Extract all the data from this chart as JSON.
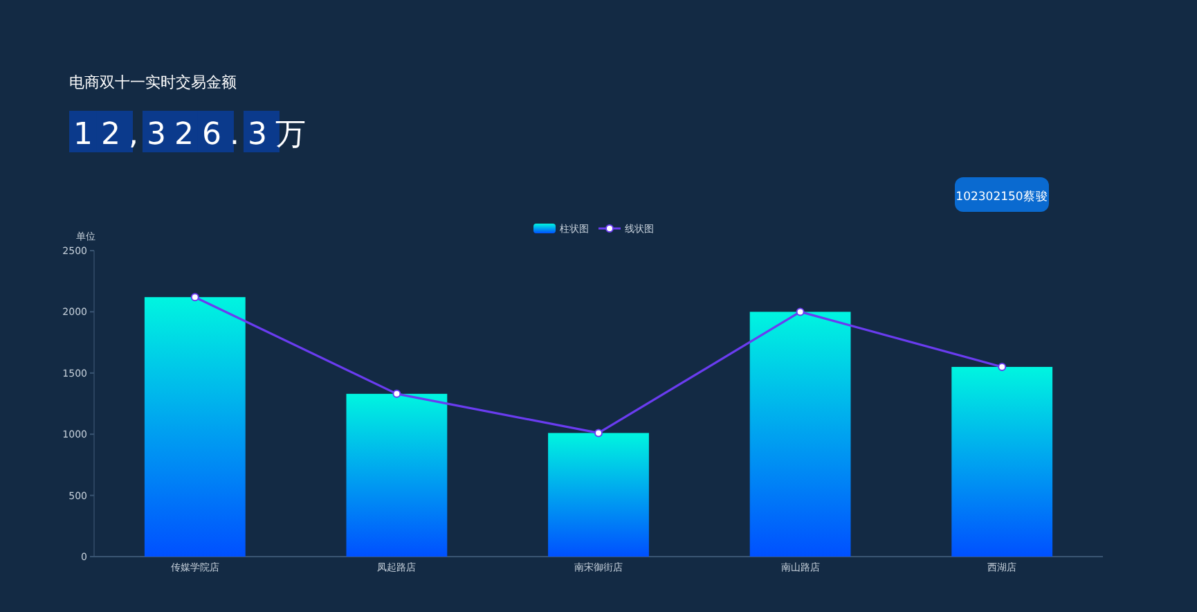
{
  "chart_data": {
    "type": "bar",
    "title": "电商双十一实时交易金额",
    "ylabel": "单位",
    "categories": [
      "传媒学院店",
      "凤起路店",
      "南宋御街店",
      "南山路店",
      "西湖店"
    ],
    "series": [
      {
        "name": "柱状图",
        "color": "#00f5e0",
        "values": [
          2120,
          1330,
          1010,
          2000,
          1550
        ]
      },
      {
        "name": "线状图",
        "type": "line",
        "color": "#6a3cf0",
        "values": [
          2120,
          1330,
          1010,
          2000,
          1550
        ]
      }
    ],
    "ylim": [
      0,
      2500
    ],
    "yticks": [
      0,
      500,
      1000,
      1500,
      2000,
      2500
    ],
    "legend": "top",
    "grid": false,
    "marker": "circle",
    "annotations": [
      "12,326.3万",
      "102302150蔡骏"
    ]
  }
}
